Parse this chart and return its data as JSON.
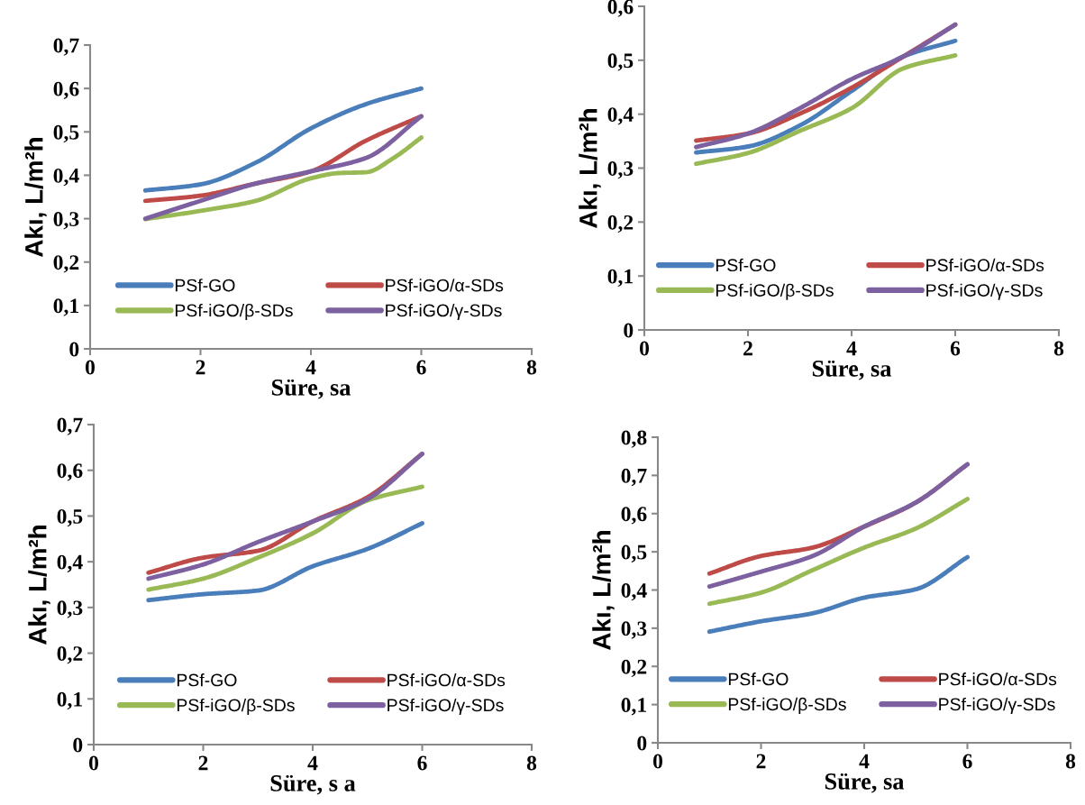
{
  "chart_data": [
    {
      "type": "line",
      "xlabel": "Süre, sa",
      "ylabel": "Akı, L/m²h",
      "x": [
        1,
        2,
        3,
        4,
        5,
        6
      ],
      "xlim": [
        0,
        8
      ],
      "xticks": [
        0,
        2,
        4,
        6,
        8
      ],
      "ylim": [
        0,
        0.7
      ],
      "yticks": [
        0,
        {
          "value": 0.1,
          "label": "0,1"
        },
        {
          "value": 0.2,
          "label": "0,2"
        },
        {
          "value": 0.3,
          "label": "0,3"
        },
        {
          "value": 0.4,
          "label": "0,4"
        },
        {
          "value": 0.5,
          "label": "0,5"
        },
        {
          "value": 0.6,
          "label": "0,6"
        },
        {
          "value": 0.7,
          "label": "0,7"
        }
      ],
      "grid": false,
      "legend": "bottom",
      "marker": "none",
      "line_style": "solid",
      "series": [
        {
          "name": "PSf-GO",
          "color": "#4a7ebb",
          "values": [
            0.365,
            0.379,
            0.429,
            0.508,
            0.564,
            0.6
          ]
        },
        {
          "name": "PSf-iGO/α-SDs",
          "color": "#be4b48",
          "values": [
            0.341,
            0.353,
            0.381,
            0.409,
            0.48,
            0.536
          ]
        },
        {
          "name": "PSf-iGO/β-SDs",
          "color": "#98b954",
          "x": [
            1,
            2,
            3,
            4,
            4.5,
            5,
            5.5,
            6
          ],
          "values": [
            0.299,
            0.318,
            0.341,
            0.393,
            0.405,
            0.407,
            0.44,
            0.487
          ]
        },
        {
          "name": "PSf-iGO/γ-SDs",
          "color": "#7d60a0",
          "values": [
            0.3,
            0.341,
            0.381,
            0.409,
            0.44,
            0.536
          ]
        }
      ]
    },
    {
      "type": "line",
      "xlabel": "Süre, sa",
      "ylabel": "Akı, L/m²h",
      "x": [
        1,
        2,
        3,
        4,
        5,
        6
      ],
      "xlim": [
        0,
        8
      ],
      "xticks": [
        0,
        2,
        4,
        6,
        8
      ],
      "ylim": [
        0,
        0.6
      ],
      "yticks": [
        0,
        {
          "value": 0.1,
          "label": "0,1"
        },
        {
          "value": 0.2,
          "label": "0,2"
        },
        {
          "value": 0.3,
          "label": "0,3"
        },
        {
          "value": 0.4,
          "label": "0,4"
        },
        {
          "value": 0.5,
          "label": "0,5"
        },
        {
          "value": 0.6,
          "label": "0,6"
        }
      ],
      "grid": false,
      "legend": "bottom",
      "marker": "none",
      "line_style": "solid",
      "series": [
        {
          "name": "PSf-GO",
          "color": "#4a7ebb",
          "values": [
            0.329,
            0.34,
            0.379,
            0.443,
            0.507,
            0.536
          ]
        },
        {
          "name": "PSf-iGO/α-SDs",
          "color": "#be4b48",
          "values": [
            0.351,
            0.364,
            0.401,
            0.449,
            0.507,
            0.566
          ]
        },
        {
          "name": "PSf-iGO/β-SDs",
          "color": "#98b954",
          "values": [
            0.308,
            0.328,
            0.369,
            0.411,
            0.485,
            0.509
          ]
        },
        {
          "name": "PSf-iGO/γ-SDs",
          "color": "#7d60a0",
          "values": [
            0.339,
            0.364,
            0.411,
            0.465,
            0.507,
            0.566
          ]
        }
      ]
    },
    {
      "type": "line",
      "xlabel": "Süre, s a",
      "ylabel": "Akı, L/m²h",
      "x": [
        1,
        2,
        3,
        4,
        5,
        6
      ],
      "xlim": [
        0,
        8
      ],
      "xticks": [
        0,
        2,
        4,
        6,
        8
      ],
      "ylim": [
        0,
        0.7
      ],
      "yticks": [
        0,
        {
          "value": 0.1,
          "label": "0,1"
        },
        {
          "value": 0.2,
          "label": "0,2"
        },
        {
          "value": 0.3,
          "label": "0,3"
        },
        {
          "value": 0.4,
          "label": "0,4"
        },
        {
          "value": 0.5,
          "label": "0,5"
        },
        {
          "value": 0.6,
          "label": "0,6"
        },
        {
          "value": 0.7,
          "label": "0,7"
        }
      ],
      "grid": false,
      "legend": "bottom",
      "marker": "none",
      "line_style": "solid",
      "series": [
        {
          "name": "PSf-GO",
          "color": "#4a7ebb",
          "values": [
            0.316,
            0.329,
            0.337,
            0.39,
            0.428,
            0.484
          ]
        },
        {
          "name": "PSf-iGO/α-SDs",
          "color": "#be4b48",
          "values": [
            0.376,
            0.409,
            0.424,
            0.488,
            0.541,
            0.636
          ]
        },
        {
          "name": "PSf-iGO/β-SDs",
          "color": "#98b954",
          "values": [
            0.339,
            0.363,
            0.409,
            0.462,
            0.534,
            0.564
          ]
        },
        {
          "name": "PSf-iGO/γ-SDs",
          "color": "#7d60a0",
          "values": [
            0.363,
            0.394,
            0.443,
            0.488,
            0.537,
            0.636
          ]
        }
      ]
    },
    {
      "type": "line",
      "xlabel": "Süre, sa",
      "ylabel": "Akı, L/m²h",
      "x": [
        1,
        2,
        3,
        4,
        5,
        6
      ],
      "xlim": [
        0,
        8
      ],
      "xticks": [
        0,
        2,
        4,
        6,
        8
      ],
      "ylim": [
        0,
        0.8
      ],
      "yticks": [
        0,
        {
          "value": 0.1,
          "label": "0,1"
        },
        {
          "value": 0.2,
          "label": "0,2"
        },
        {
          "value": 0.3,
          "label": "0,3"
        },
        {
          "value": 0.4,
          "label": "0,4"
        },
        {
          "value": 0.5,
          "label": "0,5"
        },
        {
          "value": 0.6,
          "label": "0,6"
        },
        {
          "value": 0.7,
          "label": "0,7"
        },
        {
          "value": 0.8,
          "label": "0,8"
        }
      ],
      "grid": false,
      "legend": "bottom",
      "marker": "none",
      "line_style": "solid",
      "series": [
        {
          "name": "PSf-GO",
          "color": "#4a7ebb",
          "values": [
            0.291,
            0.318,
            0.339,
            0.38,
            0.402,
            0.486
          ]
        },
        {
          "name": "PSf-iGO/α-SDs",
          "color": "#be4b48",
          "values": [
            0.443,
            0.489,
            0.511,
            0.566,
            0.629,
            0.729
          ]
        },
        {
          "name": "PSf-iGO/β-SDs",
          "color": "#98b954",
          "values": [
            0.364,
            0.393,
            0.452,
            0.511,
            0.561,
            0.638
          ]
        },
        {
          "name": "PSf-iGO/γ-SDs",
          "color": "#7d60a0",
          "values": [
            0.409,
            0.448,
            0.489,
            0.566,
            0.629,
            0.729
          ]
        }
      ]
    }
  ]
}
